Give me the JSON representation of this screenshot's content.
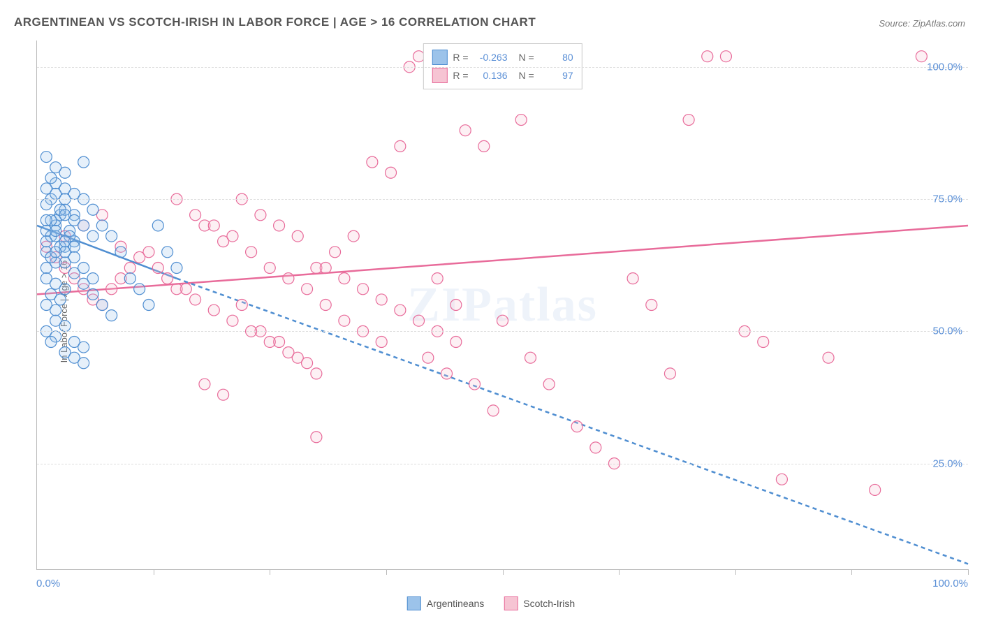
{
  "title": "ARGENTINEAN VS SCOTCH-IRISH IN LABOR FORCE | AGE > 16 CORRELATION CHART",
  "source": "Source: ZipAtlas.com",
  "ylabel": "In Labor Force | Age > 16",
  "watermark": "ZIPatlas",
  "series": {
    "argentineans": {
      "label": "Argentineans",
      "color_fill": "#9cc3ea",
      "color_stroke": "#4f8ed1",
      "R": "-0.263",
      "N": "80",
      "regression": {
        "x1": 0,
        "y1": 70,
        "x2": 15,
        "y2": 60,
        "solid": true
      },
      "regression_ext": {
        "x1": 15,
        "y1": 60,
        "x2": 100,
        "y2": 6
      },
      "points": [
        [
          1,
          65
        ],
        [
          1.5,
          68
        ],
        [
          2,
          70
        ],
        [
          2.5,
          72
        ],
        [
          3,
          66
        ],
        [
          3.5,
          69
        ],
        [
          4,
          67
        ],
        [
          1,
          62
        ],
        [
          2,
          63
        ],
        [
          1.5,
          64
        ],
        [
          2,
          71
        ],
        [
          3,
          73
        ],
        [
          4,
          72
        ],
        [
          3.5,
          68
        ],
        [
          2.5,
          66
        ],
        [
          1,
          69
        ],
        [
          1.5,
          71
        ],
        [
          2,
          68
        ],
        [
          3,
          65
        ],
        [
          4,
          66
        ],
        [
          5,
          82
        ],
        [
          3,
          80
        ],
        [
          2,
          78
        ],
        [
          1.5,
          75
        ],
        [
          1,
          74
        ],
        [
          2.5,
          73
        ],
        [
          3,
          72
        ],
        [
          4,
          71
        ],
        [
          5,
          70
        ],
        [
          6,
          68
        ],
        [
          1,
          60
        ],
        [
          2,
          59
        ],
        [
          3,
          58
        ],
        [
          1.5,
          57
        ],
        [
          2.5,
          56
        ],
        [
          1,
          55
        ],
        [
          2,
          54
        ],
        [
          3,
          77
        ],
        [
          4,
          76
        ],
        [
          5,
          75
        ],
        [
          2,
          52
        ],
        [
          3,
          51
        ],
        [
          4,
          48
        ],
        [
          5,
          47
        ],
        [
          4,
          45
        ],
        [
          5,
          44
        ],
        [
          1,
          50
        ],
        [
          2,
          49
        ],
        [
          3,
          46
        ],
        [
          1.5,
          48
        ],
        [
          6,
          73
        ],
        [
          7,
          70
        ],
        [
          8,
          68
        ],
        [
          9,
          65
        ],
        [
          10,
          60
        ],
        [
          11,
          58
        ],
        [
          12,
          55
        ],
        [
          13,
          70
        ],
        [
          14,
          65
        ],
        [
          15,
          62
        ],
        [
          1,
          83
        ],
        [
          2,
          81
        ],
        [
          1.5,
          79
        ],
        [
          1,
          77
        ],
        [
          2,
          76
        ],
        [
          3,
          75
        ],
        [
          1,
          67
        ],
        [
          2,
          65
        ],
        [
          3,
          63
        ],
        [
          4,
          61
        ],
        [
          5,
          59
        ],
        [
          6,
          57
        ],
        [
          7,
          55
        ],
        [
          8,
          53
        ],
        [
          1,
          71
        ],
        [
          2,
          69
        ],
        [
          3,
          67
        ],
        [
          4,
          64
        ],
        [
          5,
          62
        ],
        [
          6,
          60
        ]
      ]
    },
    "scotch_irish": {
      "label": "Scotch-Irish",
      "color_fill": "#f6c4d3",
      "color_stroke": "#e86b9a",
      "R": "0.136",
      "N": "97",
      "regression": {
        "x1": 0,
        "y1": 57,
        "x2": 100,
        "y2": 70,
        "solid": true
      },
      "points": [
        [
          1,
          66
        ],
        [
          2,
          64
        ],
        [
          3,
          62
        ],
        [
          4,
          60
        ],
        [
          5,
          58
        ],
        [
          6,
          56
        ],
        [
          7,
          55
        ],
        [
          8,
          58
        ],
        [
          9,
          60
        ],
        [
          10,
          62
        ],
        [
          12,
          65
        ],
        [
          14,
          60
        ],
        [
          16,
          58
        ],
        [
          18,
          70
        ],
        [
          20,
          67
        ],
        [
          22,
          55
        ],
        [
          24,
          50
        ],
        [
          26,
          48
        ],
        [
          28,
          45
        ],
        [
          30,
          42
        ],
        [
          15,
          75
        ],
        [
          17,
          72
        ],
        [
          19,
          70
        ],
        [
          21,
          68
        ],
        [
          23,
          65
        ],
        [
          25,
          62
        ],
        [
          27,
          60
        ],
        [
          29,
          58
        ],
        [
          31,
          55
        ],
        [
          33,
          52
        ],
        [
          35,
          50
        ],
        [
          37,
          48
        ],
        [
          39,
          85
        ],
        [
          41,
          102
        ],
        [
          43,
          60
        ],
        [
          45,
          55
        ],
        [
          47,
          40
        ],
        [
          49,
          35
        ],
        [
          50,
          52
        ],
        [
          52,
          90
        ],
        [
          38,
          80
        ],
        [
          36,
          82
        ],
        [
          34,
          68
        ],
        [
          32,
          65
        ],
        [
          30,
          62
        ],
        [
          40,
          100
        ],
        [
          42,
          45
        ],
        [
          44,
          42
        ],
        [
          46,
          88
        ],
        [
          48,
          85
        ],
        [
          55,
          40
        ],
        [
          58,
          32
        ],
        [
          60,
          28
        ],
        [
          62,
          25
        ],
        [
          64,
          60
        ],
        [
          66,
          55
        ],
        [
          68,
          42
        ],
        [
          70,
          90
        ],
        [
          72,
          102
        ],
        [
          74,
          102
        ],
        [
          76,
          50
        ],
        [
          78,
          48
        ],
        [
          80,
          22
        ],
        [
          85,
          45
        ],
        [
          90,
          20
        ],
        [
          95,
          102
        ],
        [
          3,
          68
        ],
        [
          5,
          70
        ],
        [
          7,
          72
        ],
        [
          9,
          66
        ],
        [
          11,
          64
        ],
        [
          13,
          62
        ],
        [
          15,
          58
        ],
        [
          17,
          56
        ],
        [
          19,
          54
        ],
        [
          21,
          52
        ],
        [
          23,
          50
        ],
        [
          25,
          48
        ],
        [
          27,
          46
        ],
        [
          29,
          44
        ],
        [
          31,
          62
        ],
        [
          33,
          60
        ],
        [
          35,
          58
        ],
        [
          37,
          56
        ],
        [
          39,
          54
        ],
        [
          41,
          52
        ],
        [
          43,
          50
        ],
        [
          45,
          48
        ],
        [
          18,
          40
        ],
        [
          20,
          38
        ],
        [
          22,
          75
        ],
        [
          24,
          72
        ],
        [
          26,
          70
        ],
        [
          28,
          68
        ],
        [
          30,
          30
        ],
        [
          44,
          102
        ],
        [
          53,
          45
        ]
      ]
    }
  },
  "chart": {
    "type": "scatter",
    "xlim": [
      0,
      100
    ],
    "ylim": [
      5,
      105
    ],
    "y_gridlines": [
      25,
      50,
      75,
      100
    ],
    "y_tick_labels": [
      "25.0%",
      "50.0%",
      "75.0%",
      "100.0%"
    ],
    "x_ticks": [
      12.5,
      25,
      37.5,
      50,
      62.5,
      75,
      87.5,
      100
    ],
    "x_tick_labels": {
      "left": "0.0%",
      "right": "100.0%"
    },
    "marker_radius": 8,
    "background_color": "#ffffff",
    "grid_color": "#dddddd",
    "reg_line_width": 2.5,
    "label_fontsize": 13,
    "tick_fontsize": 15,
    "title_fontsize": 17
  }
}
